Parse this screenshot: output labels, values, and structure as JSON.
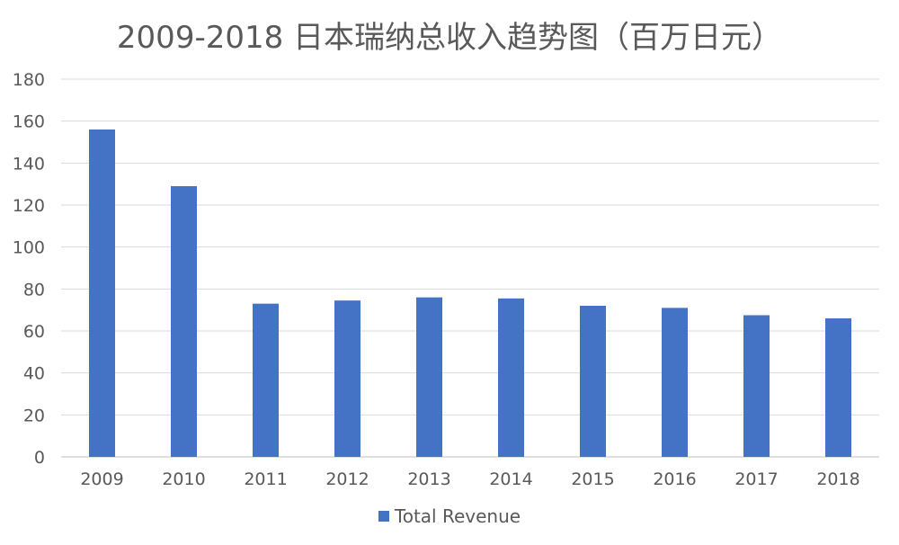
{
  "chart_data": {
    "type": "bar",
    "title": "2009-2018 日本瑞纳总收入趋势图（百万日元）",
    "categories": [
      "2009",
      "2010",
      "2011",
      "2012",
      "2013",
      "2014",
      "2015",
      "2016",
      "2017",
      "2018"
    ],
    "series": [
      {
        "name": "Total Revenue",
        "values": [
          156,
          129,
          73,
          74.5,
          76,
          75.5,
          72,
          71,
          67.5,
          66
        ],
        "color": "#4472c4"
      }
    ],
    "ylim": [
      0,
      180
    ],
    "yticks": [
      0,
      20,
      40,
      60,
      80,
      100,
      120,
      140,
      160,
      180
    ],
    "grid": true,
    "legend_position": "bottom"
  }
}
